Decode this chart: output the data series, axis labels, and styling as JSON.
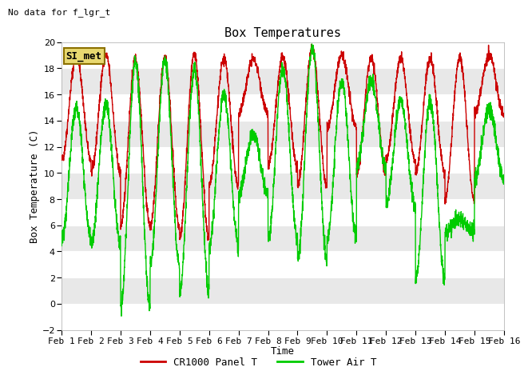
{
  "title": "Box Temperatures",
  "xlabel": "Time",
  "ylabel": "Box Temperature (C)",
  "ylim": [
    -2,
    20
  ],
  "xlim": [
    0,
    15
  ],
  "yticks": [
    -2,
    0,
    2,
    4,
    6,
    8,
    10,
    12,
    14,
    16,
    18,
    20
  ],
  "xtick_labels": [
    "Feb 1",
    "Feb 2",
    "Feb 3",
    "Feb 4",
    "Feb 5",
    "Feb 6",
    "Feb 7",
    "Feb 8",
    "Feb 9",
    "Feb 10",
    "Feb 11",
    "Feb 12",
    "Feb 13",
    "Feb 14",
    "Feb 15",
    "Feb 16"
  ],
  "red_label": "CR1000 Panel T",
  "green_label": "Tower Air T",
  "no_data_text": "No data for f_lgr_t",
  "si_met_text": "SI_met",
  "plot_bg_color": "#e8e8e8",
  "red_color": "#cc0000",
  "green_color": "#00cc00",
  "title_fontsize": 11,
  "axis_label_fontsize": 9,
  "tick_fontsize": 8,
  "red_peaks": [
    19.0,
    19.0,
    18.7,
    18.8,
    19.0,
    18.7,
    18.7,
    18.8,
    19.5,
    19.0,
    18.8,
    18.7,
    18.7,
    18.8,
    19.0
  ],
  "red_troughs": [
    11.0,
    10.0,
    6.0,
    5.8,
    5.0,
    9.0,
    14.5,
    10.5,
    9.0,
    13.5,
    10.0,
    11.0,
    10.0,
    8.0,
    14.5
  ],
  "green_peaks": [
    15.0,
    15.2,
    18.5,
    18.5,
    18.0,
    16.0,
    13.0,
    18.0,
    19.5,
    17.0,
    17.0,
    15.5,
    15.5,
    6.5,
    15.0
  ],
  "green_troughs": [
    5.0,
    4.5,
    -0.3,
    3.0,
    1.0,
    4.5,
    8.5,
    5.0,
    3.5,
    5.0,
    10.5,
    7.5,
    1.9,
    5.5,
    9.5
  ]
}
